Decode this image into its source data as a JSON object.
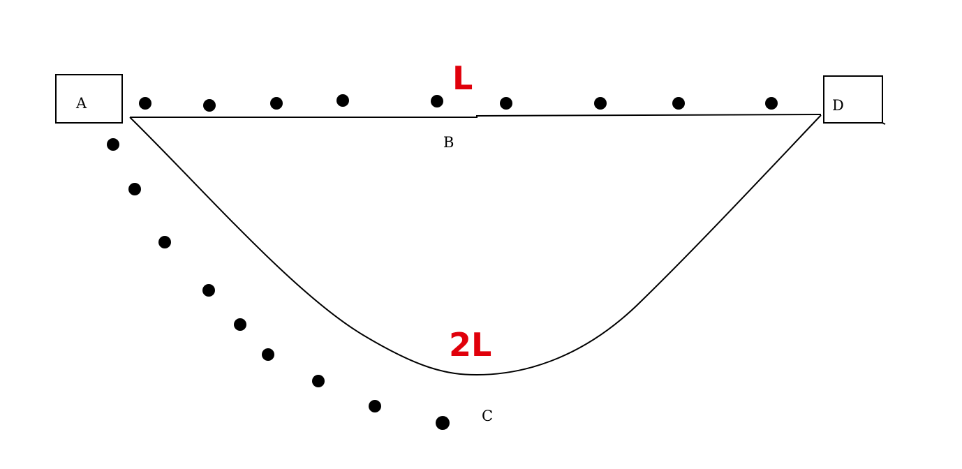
{
  "points": {
    "a": "A",
    "b": "B",
    "c": "C",
    "d": "D"
  },
  "lengths": {
    "straight": "L",
    "curve": "2L"
  },
  "colors": {
    "ink": "#000000",
    "length_label": "#e0000b",
    "background": "#ffffff"
  }
}
